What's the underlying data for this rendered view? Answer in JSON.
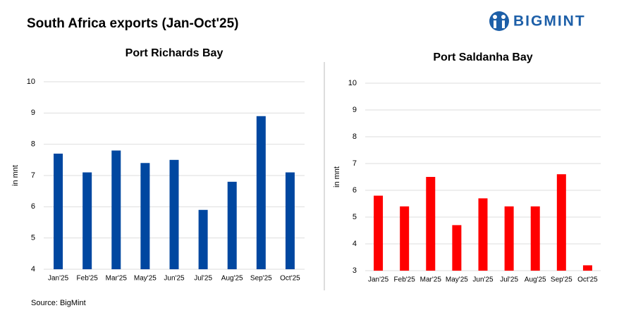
{
  "title": "South Africa exports (Jan-Oct'25)",
  "logo": "BIGMINT",
  "source": "Source:  BigMint",
  "chart_data": [
    {
      "type": "bar",
      "title": "Port Richards Bay",
      "y_label": "in mnt",
      "color": "#0047a0",
      "categories": [
        "Jan'25",
        "Feb'25",
        "Mar'25",
        "May'25",
        "Jun'25",
        "Jul'25",
        "Aug'25",
        "Sep'25",
        "Oct'25"
      ],
      "values": [
        7.7,
        7.1,
        7.8,
        7.4,
        7.5,
        5.9,
        6.8,
        8.9,
        7.1
      ],
      "ylim": [
        4,
        10
      ],
      "yticks": [
        4,
        5,
        6,
        7,
        8,
        9,
        10
      ],
      "grid": true
    },
    {
      "type": "bar",
      "title": "Port Saldanha Bay",
      "y_label": "in mnt",
      "color": "#ff0000",
      "categories": [
        "Jan'25",
        "Feb'25",
        "Mar'25",
        "May'25",
        "Jun'25",
        "Jul'25",
        "Aug'25",
        "Sep'25",
        "Oct'25"
      ],
      "values": [
        5.8,
        5.4,
        6.5,
        4.7,
        5.7,
        5.4,
        5.4,
        6.6,
        3.2
      ],
      "ylim": [
        3,
        10
      ],
      "yticks": [
        3,
        4,
        5,
        6,
        7,
        8,
        9,
        10
      ],
      "grid": true
    }
  ]
}
